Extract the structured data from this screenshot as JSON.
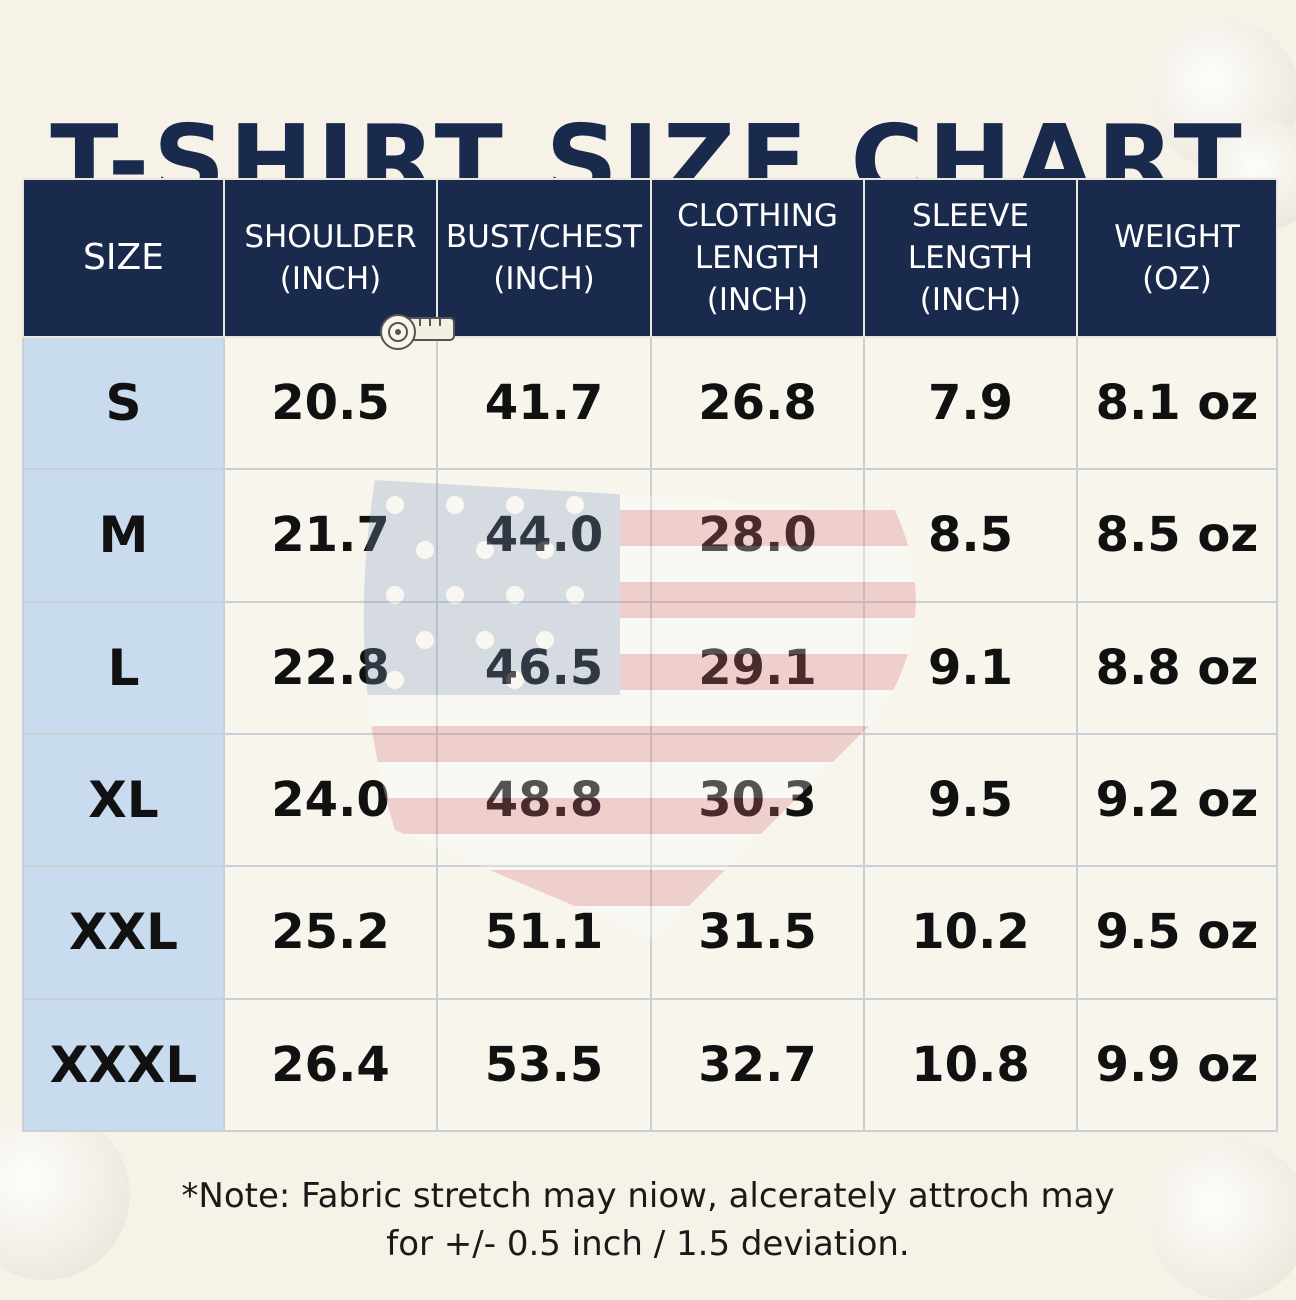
{
  "title": "T-SHIRT SIZE CHART",
  "table": {
    "headers": [
      [
        "SIZE"
      ],
      [
        "SHOULDER",
        "(INCH)"
      ],
      [
        "BUST/CHEST",
        "(INCH)"
      ],
      [
        "CLOTHING",
        "LENGTH",
        "(INCH)"
      ],
      [
        "SLEEVE",
        "LENGTH",
        "(INCH)"
      ],
      [
        "WEIGHT",
        "(OZ)"
      ]
    ],
    "rows": [
      [
        "S",
        "20.5",
        "41.7",
        "26.8",
        "7.9",
        "8.1 oz"
      ],
      [
        "M",
        "21.7",
        "44.0",
        "28.0",
        "8.5",
        "8.5 oz"
      ],
      [
        "L",
        "22.8",
        "46.5",
        "29.1",
        "9.1",
        "8.8 oz"
      ],
      [
        "XL",
        "24.0",
        "48.8",
        "30.3",
        "9.5",
        "9.2 oz"
      ],
      [
        "XXL",
        "25.2",
        "51.1",
        "31.5",
        "10.2",
        "9.5 oz"
      ],
      [
        "XXXL",
        "26.4",
        "53.5",
        "32.7",
        "10.8",
        "9.9 oz"
      ]
    ]
  },
  "note": {
    "line1": "*Note: Fabric stretch may niow, alcerately attroch may",
    "line2": "for +/- 0.5 inch / 1.5 deviation."
  },
  "colors": {
    "header_bg": "#1a2a4c",
    "size_column_bg": "#c9dcef",
    "page_bg": "#f6f2e8"
  },
  "icons": [
    "cotton-flower-icon",
    "measuring-tape-icon",
    "us-flag-watermark"
  ]
}
